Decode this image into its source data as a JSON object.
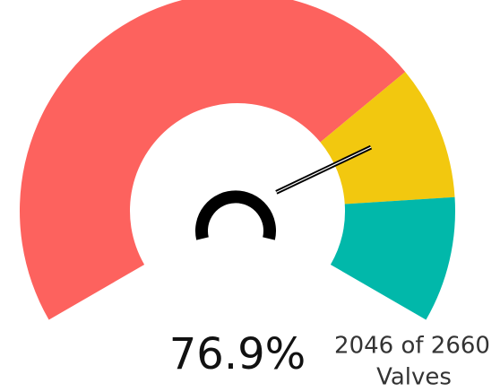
{
  "chart_data": {
    "type": "gauge",
    "value": 76.9,
    "value_label": "76.9%",
    "ylim": [
      0,
      100
    ],
    "bands": [
      {
        "from": 0,
        "to": 71,
        "color": "#fd625e"
      },
      {
        "from": 71,
        "to": 86,
        "color": "#f2c80f"
      },
      {
        "from": 86,
        "to": 100,
        "color": "#01b8aa"
      }
    ],
    "detail_lines": [
      "2046 of 2660",
      "Valves"
    ]
  }
}
